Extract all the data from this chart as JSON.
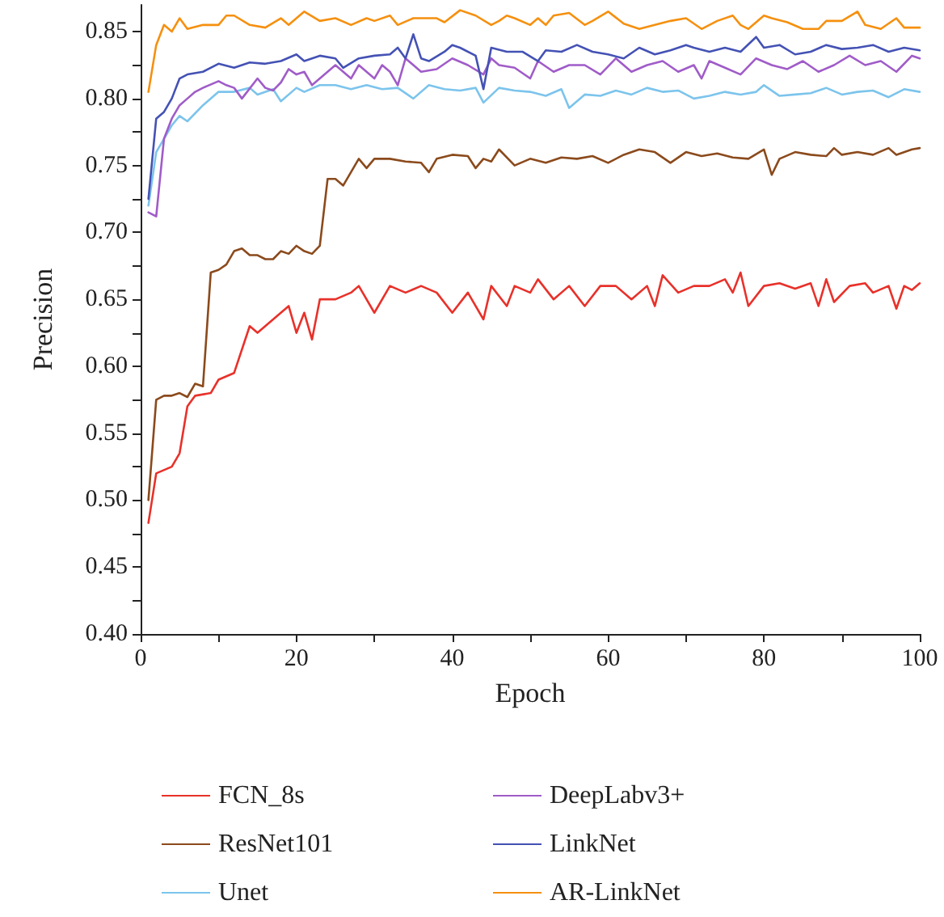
{
  "chart_data": {
    "type": "line",
    "xlabel": "Epoch",
    "ylabel": "Precision",
    "xlim": [
      0,
      100
    ],
    "xticks": [
      0,
      {
        "value": 10,
        "label": null
      },
      20,
      {
        "value": 30,
        "label": null
      },
      40,
      {
        "value": 50,
        "label": null
      },
      60,
      {
        "value": 70,
        "label": null
      },
      80,
      {
        "value": 90,
        "label": null
      },
      100
    ],
    "ylim": [
      0.4,
      0.87
    ],
    "yticks": [
      {
        "value": 0.4,
        "label": "0.40"
      },
      {
        "value": 0.425,
        "label": null
      },
      {
        "value": 0.45,
        "label": "0.45"
      },
      {
        "value": 0.475,
        "label": null
      },
      {
        "value": 0.5,
        "label": "0.50"
      },
      {
        "value": 0.525,
        "label": null
      },
      {
        "value": 0.55,
        "label": "0.55"
      },
      {
        "value": 0.575,
        "label": null
      },
      {
        "value": 0.6,
        "label": "0.60"
      },
      {
        "value": 0.625,
        "label": null
      },
      {
        "value": 0.65,
        "label": "0.65"
      },
      {
        "value": 0.675,
        "label": null
      },
      {
        "value": 0.7,
        "label": "0.70"
      },
      {
        "value": 0.725,
        "label": null
      },
      {
        "value": 0.75,
        "label": "0.75"
      },
      {
        "value": 0.775,
        "label": null
      },
      {
        "value": 0.8,
        "label": "0.80"
      },
      {
        "value": 0.825,
        "label": null
      },
      {
        "value": 0.85,
        "label": "0.85"
      }
    ],
    "grid": false,
    "legend": "bottom",
    "marker": "none",
    "line_style": "solid",
    "series": [
      {
        "name": "FCN_8s",
        "color": "#e8312a",
        "x": [
          1,
          2,
          4,
          5,
          6,
          7,
          9,
          10,
          12,
          14,
          15,
          17,
          19,
          20,
          21,
          22,
          23,
          25,
          27,
          28,
          30,
          32,
          34,
          36,
          38,
          40,
          42,
          44,
          45,
          47,
          48,
          50,
          51,
          53,
          55,
          57,
          59,
          61,
          63,
          65,
          66,
          67,
          69,
          71,
          73,
          75,
          76,
          77,
          78,
          80,
          82,
          84,
          86,
          87,
          88,
          89,
          91,
          93,
          94,
          96,
          97,
          98,
          99,
          100
        ],
        "values": [
          0.483,
          0.52,
          0.525,
          0.535,
          0.57,
          0.578,
          0.58,
          0.59,
          0.595,
          0.63,
          0.625,
          0.635,
          0.645,
          0.625,
          0.64,
          0.62,
          0.65,
          0.65,
          0.655,
          0.66,
          0.64,
          0.66,
          0.655,
          0.66,
          0.655,
          0.64,
          0.655,
          0.635,
          0.66,
          0.645,
          0.66,
          0.655,
          0.665,
          0.65,
          0.66,
          0.645,
          0.66,
          0.66,
          0.65,
          0.66,
          0.645,
          0.668,
          0.655,
          0.66,
          0.66,
          0.665,
          0.655,
          0.67,
          0.645,
          0.66,
          0.662,
          0.658,
          0.662,
          0.645,
          0.665,
          0.648,
          0.66,
          0.662,
          0.655,
          0.66,
          0.643,
          0.66,
          0.657,
          0.662
        ]
      },
      {
        "name": "ResNet101",
        "color": "#8b4a1c",
        "x": [
          1,
          2,
          3,
          4,
          5,
          6,
          7,
          8,
          9,
          10,
          11,
          12,
          13,
          14,
          15,
          16,
          17,
          18,
          19,
          20,
          21,
          22,
          23,
          24,
          25,
          26,
          27,
          28,
          29,
          30,
          32,
          34,
          36,
          37,
          38,
          40,
          42,
          43,
          44,
          45,
          46,
          48,
          50,
          52,
          54,
          56,
          58,
          60,
          62,
          64,
          66,
          68,
          70,
          72,
          74,
          76,
          78,
          80,
          81,
          82,
          84,
          86,
          88,
          89,
          90,
          92,
          94,
          96,
          97,
          99,
          100
        ],
        "values": [
          0.5,
          0.575,
          0.578,
          0.578,
          0.58,
          0.577,
          0.587,
          0.585,
          0.67,
          0.672,
          0.676,
          0.686,
          0.688,
          0.683,
          0.683,
          0.68,
          0.68,
          0.686,
          0.684,
          0.69,
          0.686,
          0.684,
          0.69,
          0.74,
          0.74,
          0.735,
          0.745,
          0.755,
          0.748,
          0.755,
          0.755,
          0.753,
          0.752,
          0.745,
          0.755,
          0.758,
          0.757,
          0.748,
          0.755,
          0.753,
          0.762,
          0.75,
          0.755,
          0.752,
          0.756,
          0.755,
          0.757,
          0.752,
          0.758,
          0.762,
          0.76,
          0.752,
          0.76,
          0.757,
          0.759,
          0.756,
          0.755,
          0.762,
          0.743,
          0.755,
          0.76,
          0.758,
          0.757,
          0.763,
          0.758,
          0.76,
          0.758,
          0.763,
          0.758,
          0.762,
          0.763
        ]
      },
      {
        "name": "Unet",
        "color": "#7cc4ec",
        "x": [
          1,
          2,
          3,
          4,
          5,
          6,
          8,
          10,
          12,
          14,
          15,
          17,
          18,
          20,
          21,
          23,
          25,
          27,
          29,
          31,
          33,
          35,
          37,
          39,
          41,
          43,
          44,
          46,
          48,
          50,
          52,
          54,
          55,
          57,
          59,
          61,
          63,
          65,
          67,
          69,
          71,
          73,
          75,
          77,
          79,
          80,
          82,
          84,
          86,
          88,
          90,
          92,
          94,
          96,
          98,
          100
        ],
        "values": [
          0.72,
          0.76,
          0.77,
          0.78,
          0.787,
          0.783,
          0.795,
          0.805,
          0.805,
          0.808,
          0.803,
          0.807,
          0.798,
          0.808,
          0.805,
          0.81,
          0.81,
          0.807,
          0.81,
          0.807,
          0.808,
          0.8,
          0.81,
          0.807,
          0.806,
          0.808,
          0.797,
          0.808,
          0.806,
          0.805,
          0.802,
          0.807,
          0.793,
          0.803,
          0.802,
          0.806,
          0.803,
          0.808,
          0.805,
          0.806,
          0.8,
          0.802,
          0.805,
          0.803,
          0.805,
          0.81,
          0.802,
          0.803,
          0.804,
          0.808,
          0.803,
          0.805,
          0.806,
          0.801,
          0.807,
          0.805
        ]
      },
      {
        "name": "DeepLabv3+",
        "color": "#a05cc8",
        "x": [
          1,
          2,
          3,
          4,
          5,
          6,
          7,
          8,
          10,
          11,
          12,
          13,
          15,
          16,
          17,
          18,
          19,
          20,
          21,
          22,
          24,
          25,
          27,
          28,
          30,
          31,
          32,
          33,
          34,
          36,
          38,
          40,
          42,
          44,
          45,
          46,
          48,
          50,
          51,
          53,
          55,
          57,
          59,
          61,
          63,
          65,
          67,
          69,
          71,
          72,
          73,
          75,
          77,
          79,
          81,
          83,
          85,
          87,
          89,
          91,
          93,
          95,
          97,
          99,
          100
        ],
        "values": [
          0.715,
          0.712,
          0.77,
          0.785,
          0.795,
          0.8,
          0.805,
          0.808,
          0.813,
          0.81,
          0.808,
          0.8,
          0.815,
          0.808,
          0.806,
          0.812,
          0.822,
          0.818,
          0.82,
          0.81,
          0.82,
          0.825,
          0.815,
          0.825,
          0.815,
          0.825,
          0.82,
          0.81,
          0.83,
          0.82,
          0.822,
          0.83,
          0.825,
          0.818,
          0.83,
          0.825,
          0.823,
          0.815,
          0.828,
          0.82,
          0.825,
          0.825,
          0.818,
          0.83,
          0.82,
          0.825,
          0.828,
          0.82,
          0.825,
          0.815,
          0.828,
          0.823,
          0.818,
          0.83,
          0.825,
          0.822,
          0.828,
          0.82,
          0.825,
          0.832,
          0.825,
          0.828,
          0.82,
          0.832,
          0.83
        ]
      },
      {
        "name": "LinkNet",
        "color": "#4452b4",
        "x": [
          1,
          2,
          3,
          4,
          5,
          6,
          8,
          10,
          12,
          14,
          16,
          18,
          20,
          21,
          23,
          25,
          26,
          28,
          30,
          32,
          33,
          34,
          35,
          36,
          37,
          39,
          40,
          41,
          43,
          44,
          45,
          47,
          49,
          51,
          52,
          54,
          56,
          58,
          60,
          62,
          64,
          66,
          68,
          70,
          71,
          73,
          75,
          77,
          79,
          80,
          82,
          84,
          86,
          88,
          90,
          92,
          94,
          96,
          98,
          100
        ],
        "values": [
          0.725,
          0.785,
          0.79,
          0.8,
          0.815,
          0.818,
          0.82,
          0.826,
          0.823,
          0.827,
          0.826,
          0.828,
          0.833,
          0.828,
          0.832,
          0.83,
          0.823,
          0.83,
          0.832,
          0.833,
          0.838,
          0.83,
          0.848,
          0.83,
          0.828,
          0.835,
          0.84,
          0.838,
          0.832,
          0.807,
          0.838,
          0.835,
          0.835,
          0.828,
          0.836,
          0.835,
          0.84,
          0.835,
          0.833,
          0.83,
          0.838,
          0.833,
          0.836,
          0.84,
          0.838,
          0.835,
          0.838,
          0.835,
          0.846,
          0.838,
          0.84,
          0.833,
          0.835,
          0.84,
          0.837,
          0.838,
          0.84,
          0.835,
          0.838,
          0.836
        ]
      },
      {
        "name": "AR-LinkNet",
        "color": "#f5900f",
        "x": [
          1,
          2,
          3,
          4,
          5,
          6,
          8,
          10,
          11,
          12,
          14,
          16,
          18,
          19,
          21,
          23,
          25,
          27,
          29,
          30,
          32,
          33,
          35,
          36,
          38,
          39,
          41,
          43,
          45,
          46,
          47,
          48,
          50,
          51,
          52,
          53,
          55,
          57,
          58,
          60,
          62,
          64,
          66,
          68,
          70,
          72,
          74,
          76,
          77,
          78,
          80,
          81,
          83,
          85,
          87,
          88,
          90,
          92,
          93,
          95,
          97,
          98,
          100
        ],
        "values": [
          0.805,
          0.84,
          0.855,
          0.85,
          0.86,
          0.852,
          0.855,
          0.855,
          0.862,
          0.862,
          0.855,
          0.853,
          0.86,
          0.855,
          0.865,
          0.858,
          0.86,
          0.855,
          0.86,
          0.858,
          0.862,
          0.855,
          0.86,
          0.86,
          0.86,
          0.857,
          0.866,
          0.862,
          0.855,
          0.858,
          0.862,
          0.86,
          0.855,
          0.86,
          0.855,
          0.862,
          0.864,
          0.855,
          0.858,
          0.865,
          0.856,
          0.852,
          0.855,
          0.858,
          0.86,
          0.852,
          0.858,
          0.862,
          0.855,
          0.852,
          0.862,
          0.86,
          0.857,
          0.852,
          0.852,
          0.858,
          0.858,
          0.865,
          0.855,
          0.852,
          0.86,
          0.853,
          0.853
        ]
      }
    ]
  }
}
